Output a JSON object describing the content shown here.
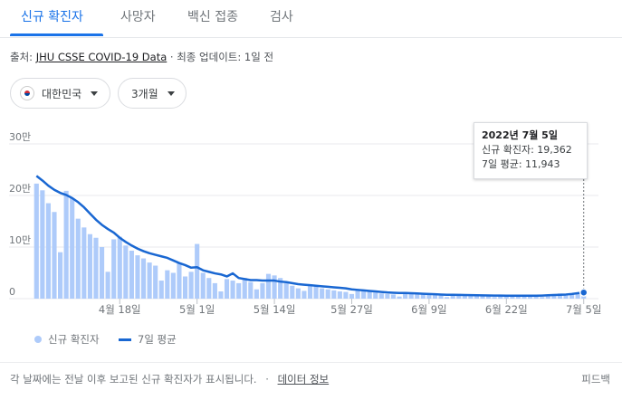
{
  "tabs": [
    {
      "label": "신규 확진자",
      "active": true
    },
    {
      "label": "사망자",
      "active": false
    },
    {
      "label": "백신 접종",
      "active": false
    },
    {
      "label": "검사",
      "active": false
    }
  ],
  "source": {
    "prefix": "출처: ",
    "link": "JHU CSSE COVID-19 Data",
    "suffix": " · 최종 업데이트: 1일 전"
  },
  "filters": {
    "region": "대한민국",
    "period": "3개월"
  },
  "tooltip": {
    "date": "2022년 7월 5일",
    "line1": "신규 확진자: 19,362",
    "line2": "7일 평균: 11,943"
  },
  "legend": {
    "bars": "신규 확진자",
    "line": "7일 평균"
  },
  "footer": {
    "note": "각 날짜에는 전날 이후 보고된 신규 확진자가 표시됩니다.",
    "sep": "·",
    "link": "데이터 정보",
    "feedback": "피드백"
  },
  "chart_data": {
    "type": "bar",
    "y_ticks": [
      "0",
      "10만",
      "20만",
      "30만"
    ],
    "ylim": [
      0,
      300000
    ],
    "x_labels": [
      {
        "label": "4월 18일",
        "index": 14
      },
      {
        "label": "5월 1일",
        "index": 27
      },
      {
        "label": "5월 14일",
        "index": 40
      },
      {
        "label": "5월 27일",
        "index": 53
      },
      {
        "label": "6월 9일",
        "index": 66
      },
      {
        "label": "6월 22일",
        "index": 79
      },
      {
        "label": "7월 5일",
        "index": 92
      }
    ],
    "colors": {
      "bars": "#aecbfa",
      "line": "#1967d2",
      "grid": "#e8eaed"
    },
    "series": [
      {
        "name": "신규 확진자",
        "values": [
          223000,
          210000,
          185000,
          168000,
          90000,
          209000,
          195000,
          155000,
          138000,
          125000,
          118000,
          100000,
          52000,
          115000,
          120000,
          103000,
          93000,
          84000,
          78000,
          70000,
          64000,
          35000,
          55000,
          50000,
          70000,
          43000,
          52000,
          106000,
          50000,
          40000,
          30000,
          14000,
          38000,
          35000,
          30000,
          40000,
          32000,
          18000,
          30000,
          48000,
          45000,
          40000,
          30000,
          25000,
          20000,
          15000,
          28000,
          24000,
          20000,
          18000,
          16000,
          14000,
          13000,
          9000,
          18000,
          15000,
          14000,
          12000,
          10000,
          9000,
          8000,
          4000,
          13000,
          12000,
          11000,
          10000,
          9000,
          7000,
          6000,
          3000,
          9000,
          9000,
          8000,
          7000,
          6000,
          5000,
          5000,
          3000,
          7000,
          7000,
          6000,
          6000,
          6000,
          5000,
          4000,
          3000,
          7000,
          9000,
          10000,
          9000,
          9000,
          11000,
          19362
        ]
      },
      {
        "name": "7일 평균",
        "values": [
          238000,
          229000,
          219000,
          211000,
          205000,
          201000,
          195000,
          187000,
          177000,
          165000,
          153000,
          143000,
          135000,
          128000,
          118000,
          110000,
          103000,
          97000,
          92000,
          88000,
          85000,
          82000,
          79000,
          74000,
          69000,
          65000,
          60000,
          61000,
          55000,
          52000,
          49000,
          47000,
          43000,
          49000,
          40000,
          38000,
          36000,
          36000,
          35000,
          35000,
          35000,
          33000,
          32000,
          30000,
          28000,
          27000,
          26000,
          25000,
          24000,
          23000,
          22000,
          21000,
          20000,
          18000,
          17000,
          16000,
          15000,
          14000,
          13000,
          12000,
          11500,
          11000,
          11000,
          10500,
          10000,
          9500,
          9000,
          8500,
          8000,
          7500,
          7500,
          7200,
          7000,
          6800,
          6500,
          6300,
          6100,
          6000,
          5900,
          5800,
          5800,
          5800,
          5700,
          5700,
          5700,
          6000,
          6500,
          7000,
          7500,
          8000,
          9000,
          10500,
          11943
        ]
      }
    ]
  }
}
